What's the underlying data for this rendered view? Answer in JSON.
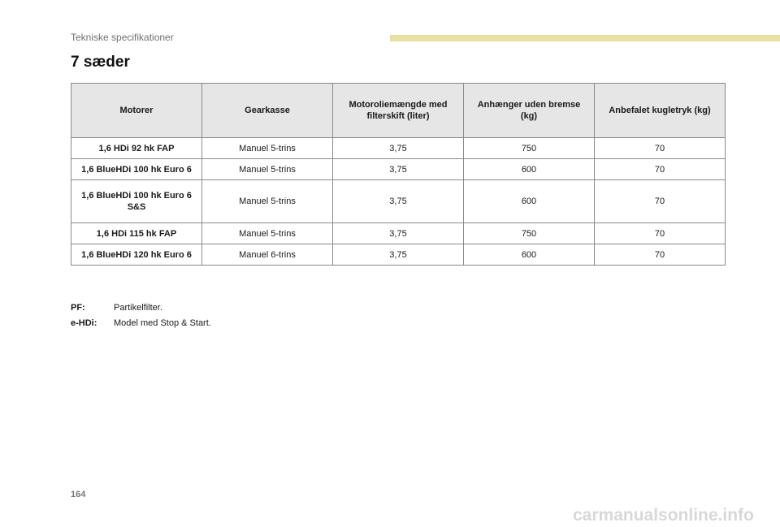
{
  "header": {
    "section_title": "Tekniske specifikationer"
  },
  "page_title": "7 sæder",
  "table": {
    "columns": [
      "Motorer",
      "Gearkasse",
      "Motoroliemængde med filterskift (liter)",
      "Anhænger uden bremse (kg)",
      "Anbefalet kugletryk (kg)"
    ],
    "rows": [
      [
        "1,6 HDi 92 hk FAP",
        "Manuel 5-trins",
        "3,75",
        "750",
        "70"
      ],
      [
        "1,6 BlueHDi 100 hk Euro 6",
        "Manuel 5-trins",
        "3,75",
        "600",
        "70"
      ],
      [
        "1,6 BlueHDi 100 hk Euro 6 S&S",
        "Manuel 5-trins",
        "3,75",
        "600",
        "70"
      ],
      [
        "1,6 HDi 115 hk FAP",
        "Manuel 5-trins",
        "3,75",
        "750",
        "70"
      ],
      [
        "1,6 BlueHDi 120 hk Euro 6",
        "Manuel 6-trins",
        "3,75",
        "600",
        "70"
      ]
    ]
  },
  "notes": [
    {
      "term": "PF:",
      "text": "Partikelfilter."
    },
    {
      "term": "e-HDi:",
      "text": "Model med Stop & Start."
    }
  ],
  "page_number": "164",
  "watermark": "carmanualsonline.info",
  "colors": {
    "header_bar": "#e8e0a0",
    "table_header_bg": "#e6e6e6",
    "border": "#8a8a8a"
  }
}
